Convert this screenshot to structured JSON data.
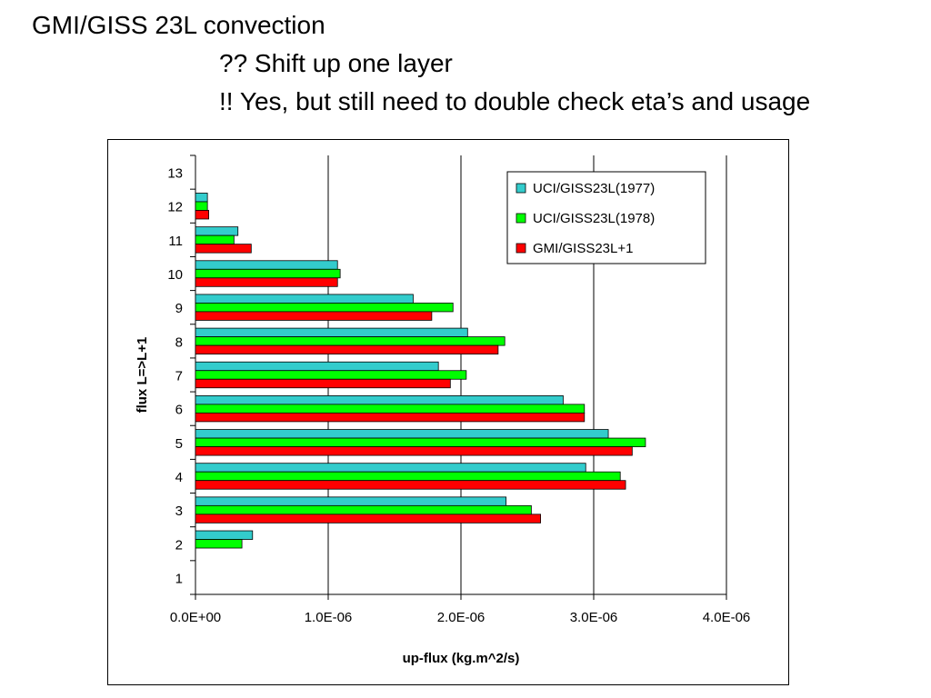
{
  "slide": {
    "title": "GMI/GISS 23L convection",
    "note1": "?? Shift up one layer",
    "note2": "!! Yes, but still need to double check eta’s and usage"
  },
  "chart_data": {
    "type": "bar",
    "orientation": "horizontal",
    "title": "",
    "xlabel": "up-flux (kg.m^2/s)",
    "ylabel": "flux L=>L+1",
    "categories": [
      "1",
      "2",
      "3",
      "4",
      "5",
      "6",
      "7",
      "8",
      "9",
      "10",
      "11",
      "12",
      "13"
    ],
    "xlim": [
      0,
      4e-06
    ],
    "xticks": [
      "0.0E+00",
      "1.0E-06",
      "2.0E-06",
      "3.0E-06",
      "4.0E-06"
    ],
    "grid": "vertical major gridlines",
    "legend_position": "top-right",
    "series": [
      {
        "name": "UCI/GISS23L(1977)",
        "color": "#33CCCC",
        "values": [
          0,
          4.3e-07,
          2.34e-06,
          2.94e-06,
          3.11e-06,
          2.77e-06,
          1.83e-06,
          2.05e-06,
          1.64e-06,
          1.07e-06,
          3.2e-07,
          9e-08,
          0
        ]
      },
      {
        "name": "UCI/GISS23L(1978)",
        "color": "#00FF00",
        "values": [
          0,
          3.5e-07,
          2.53e-06,
          3.2e-06,
          3.39e-06,
          2.93e-06,
          2.04e-06,
          2.33e-06,
          1.94e-06,
          1.09e-06,
          2.9e-07,
          9e-08,
          0
        ]
      },
      {
        "name": "GMI/GISS23L+1",
        "color": "#FF0000",
        "values": [
          0,
          0,
          2.6e-06,
          3.24e-06,
          3.29e-06,
          2.93e-06,
          1.92e-06,
          2.28e-06,
          1.78e-06,
          1.07e-06,
          4.2e-07,
          1e-07,
          0
        ]
      }
    ]
  }
}
